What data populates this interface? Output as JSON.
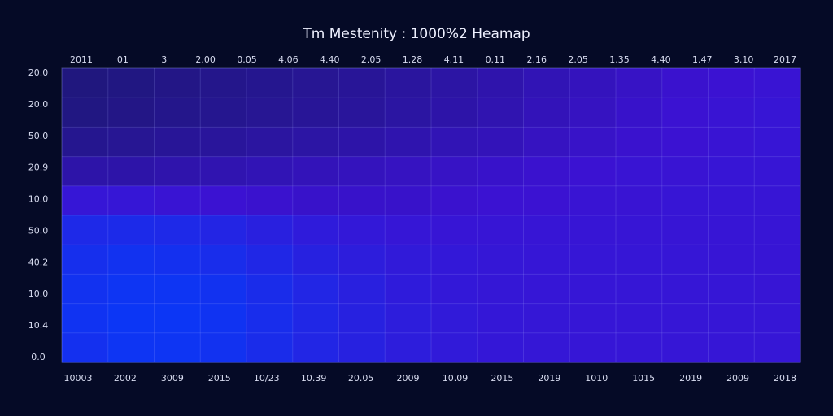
{
  "chart_data": {
    "type": "heatmap",
    "title": "Tm Mestenity : 1000%2 Heamap",
    "top_labels": [
      "2011",
      "01",
      "3",
      "2.00",
      "0.05",
      "4.06",
      "4.40",
      "2.05",
      "1.28",
      "4.11",
      "0.11",
      "2.16",
      "2.05",
      "1.35",
      "4.40",
      "1.47",
      "3.10",
      "2017"
    ],
    "x_labels": [
      "10003",
      "2002",
      "3009",
      "2015",
      "10/23",
      "10.39",
      "20.05",
      "2009",
      "10.09",
      "2015",
      "2019",
      "1010",
      "1015",
      "2019",
      "2009",
      "2018"
    ],
    "y_labels": [
      "20.0",
      "20.0",
      "50.0",
      "20.9",
      "10.0",
      "50.0",
      "40.2",
      "10.0",
      "10.4",
      "0.0"
    ],
    "zlim": [
      0,
      100
    ],
    "colorscale": [
      "#191869",
      "#3b12d2",
      "#0a38f6"
    ],
    "grid": true,
    "values": [
      [
        10,
        12,
        14,
        16,
        18,
        20,
        22,
        25,
        28,
        32,
        36,
        40,
        44,
        48,
        50,
        52
      ],
      [
        12,
        14,
        16,
        18,
        20,
        22,
        24,
        27,
        30,
        34,
        38,
        42,
        46,
        50,
        52,
        54
      ],
      [
        18,
        20,
        22,
        24,
        26,
        28,
        30,
        33,
        36,
        38,
        42,
        45,
        48,
        50,
        52,
        54
      ],
      [
        30,
        30,
        32,
        34,
        36,
        38,
        40,
        42,
        44,
        46,
        48,
        50,
        52,
        52,
        54,
        54
      ],
      [
        55,
        55,
        52,
        50,
        48,
        46,
        46,
        46,
        48,
        50,
        50,
        52,
        52,
        54,
        54,
        54
      ],
      [
        80,
        82,
        80,
        75,
        68,
        62,
        58,
        55,
        54,
        54,
        54,
        54,
        54,
        54,
        54,
        54
      ],
      [
        88,
        92,
        90,
        85,
        78,
        70,
        64,
        60,
        58,
        56,
        55,
        55,
        55,
        55,
        54,
        54
      ],
      [
        92,
        96,
        96,
        92,
        84,
        76,
        68,
        62,
        58,
        56,
        55,
        55,
        55,
        55,
        55,
        54
      ],
      [
        94,
        98,
        98,
        94,
        86,
        78,
        70,
        64,
        60,
        57,
        56,
        55,
        55,
        55,
        55,
        55
      ],
      [
        90,
        96,
        96,
        92,
        84,
        76,
        70,
        64,
        60,
        57,
        56,
        55,
        55,
        55,
        55,
        55
      ]
    ]
  }
}
